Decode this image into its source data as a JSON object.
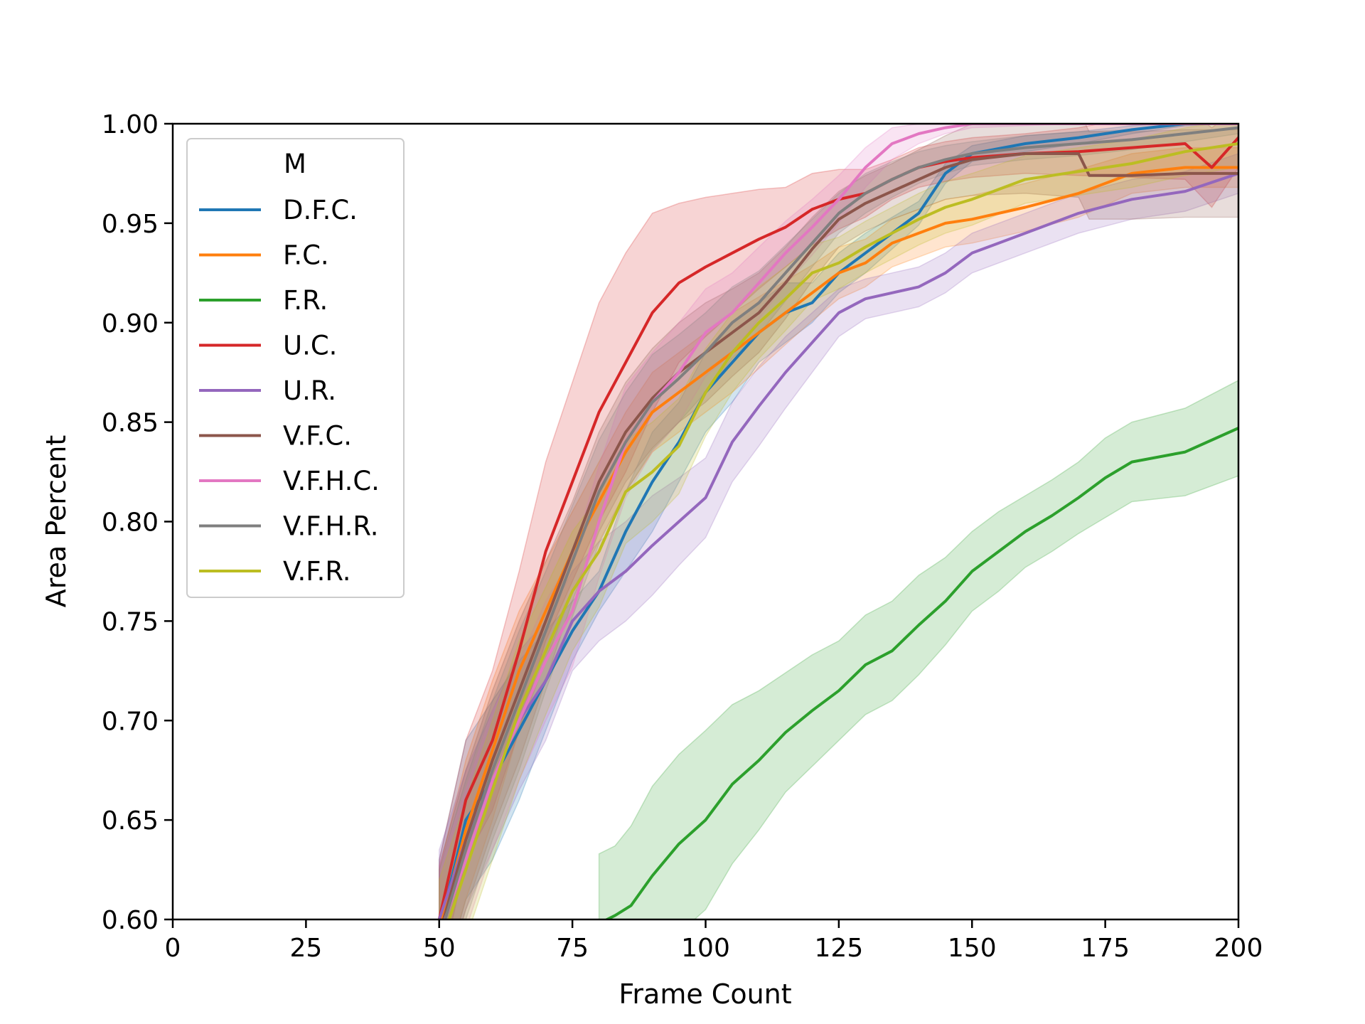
{
  "chart_data": {
    "type": "line",
    "xlabel": "Frame Count",
    "ylabel": "Area Percent",
    "xlim": [
      0,
      200
    ],
    "ylim": [
      0.6,
      1.0
    ],
    "xticks": [
      "0",
      "25",
      "50",
      "75",
      "100",
      "125",
      "150",
      "175",
      "200"
    ],
    "yticks": [
      "0.60",
      "0.65",
      "0.70",
      "0.75",
      "0.80",
      "0.85",
      "0.90",
      "0.95",
      "1.00"
    ],
    "grid": false,
    "legend": {
      "title": "M",
      "position": "top-left"
    },
    "series": [
      {
        "name": "D.F.C.",
        "color": "#1f77b4",
        "x": [
          50,
          55,
          60,
          65,
          70,
          75,
          80,
          85,
          90,
          95,
          100,
          105,
          110,
          115,
          120,
          125,
          130,
          135,
          140,
          145,
          150,
          160,
          170,
          180,
          190,
          200
        ],
        "y": [
          0.595,
          0.65,
          0.67,
          0.695,
          0.72,
          0.745,
          0.765,
          0.795,
          0.82,
          0.84,
          0.865,
          0.88,
          0.895,
          0.905,
          0.91,
          0.925,
          0.935,
          0.945,
          0.955,
          0.975,
          0.985,
          0.99,
          0.993,
          0.997,
          1.0,
          1.0
        ],
        "band": [
          0.035,
          0.04,
          0.04,
          0.035,
          0.025,
          0.015,
          0.01,
          0.02,
          0.025,
          0.02,
          0.02,
          0.02,
          0.015,
          0.015,
          0.01,
          0.01,
          0.01,
          0.008,
          0.006,
          0.005,
          0.004,
          0.004,
          0.003,
          0.002,
          0.001,
          0.0
        ]
      },
      {
        "name": "F.C.",
        "color": "#ff7f0e",
        "x": [
          50,
          55,
          60,
          65,
          70,
          75,
          80,
          85,
          90,
          95,
          100,
          105,
          110,
          115,
          120,
          125,
          130,
          135,
          140,
          145,
          150,
          160,
          170,
          180,
          190,
          200
        ],
        "y": [
          0.595,
          0.645,
          0.685,
          0.725,
          0.755,
          0.785,
          0.81,
          0.835,
          0.855,
          0.865,
          0.875,
          0.885,
          0.895,
          0.905,
          0.915,
          0.925,
          0.93,
          0.94,
          0.945,
          0.95,
          0.952,
          0.958,
          0.965,
          0.975,
          0.978,
          0.978
        ],
        "band": [
          0.03,
          0.035,
          0.035,
          0.03,
          0.025,
          0.02,
          0.02,
          0.02,
          0.02,
          0.02,
          0.02,
          0.02,
          0.018,
          0.016,
          0.014,
          0.013,
          0.012,
          0.012,
          0.012,
          0.012,
          0.012,
          0.012,
          0.012,
          0.01,
          0.01,
          0.01
        ]
      },
      {
        "name": "F.R.",
        "color": "#2ca02c",
        "x": [
          80,
          83,
          86,
          90,
          95,
          100,
          105,
          110,
          115,
          120,
          125,
          130,
          135,
          140,
          145,
          150,
          155,
          160,
          165,
          170,
          175,
          180,
          190,
          200
        ],
        "y": [
          0.598,
          0.602,
          0.607,
          0.622,
          0.638,
          0.65,
          0.668,
          0.68,
          0.694,
          0.705,
          0.715,
          0.728,
          0.735,
          0.748,
          0.76,
          0.775,
          0.785,
          0.795,
          0.803,
          0.812,
          0.822,
          0.83,
          0.835,
          0.847
        ],
        "band": [
          0.035,
          0.035,
          0.04,
          0.045,
          0.045,
          0.045,
          0.04,
          0.035,
          0.03,
          0.028,
          0.025,
          0.025,
          0.025,
          0.025,
          0.022,
          0.02,
          0.02,
          0.018,
          0.018,
          0.018,
          0.02,
          0.02,
          0.022,
          0.024
        ]
      },
      {
        "name": "U.C.",
        "color": "#d62728",
        "x": [
          50,
          55,
          60,
          65,
          70,
          75,
          80,
          85,
          90,
          95,
          100,
          105,
          110,
          115,
          120,
          125,
          130,
          135,
          140,
          145,
          150,
          160,
          170,
          180,
          190,
          195,
          200
        ],
        "y": [
          0.6,
          0.66,
          0.69,
          0.735,
          0.785,
          0.82,
          0.855,
          0.88,
          0.905,
          0.92,
          0.928,
          0.935,
          0.942,
          0.948,
          0.957,
          0.962,
          0.965,
          0.972,
          0.978,
          0.981,
          0.983,
          0.985,
          0.986,
          0.988,
          0.99,
          0.978,
          0.993
        ],
        "band": [
          0.03,
          0.03,
          0.035,
          0.04,
          0.045,
          0.05,
          0.055,
          0.055,
          0.05,
          0.04,
          0.035,
          0.03,
          0.025,
          0.02,
          0.018,
          0.015,
          0.012,
          0.01,
          0.01,
          0.01,
          0.01,
          0.01,
          0.012,
          0.015,
          0.018,
          0.02,
          0.015
        ]
      },
      {
        "name": "U.R.",
        "color": "#9467bd",
        "x": [
          50,
          55,
          60,
          65,
          70,
          75,
          80,
          85,
          90,
          95,
          100,
          105,
          110,
          115,
          120,
          125,
          130,
          135,
          140,
          145,
          150,
          160,
          170,
          180,
          190,
          200
        ],
        "y": [
          0.6,
          0.64,
          0.67,
          0.7,
          0.72,
          0.75,
          0.765,
          0.775,
          0.788,
          0.8,
          0.812,
          0.84,
          0.858,
          0.875,
          0.89,
          0.905,
          0.912,
          0.915,
          0.918,
          0.925,
          0.935,
          0.945,
          0.955,
          0.962,
          0.966,
          0.975
        ],
        "band": [
          0.035,
          0.035,
          0.035,
          0.035,
          0.03,
          0.025,
          0.025,
          0.025,
          0.025,
          0.022,
          0.02,
          0.02,
          0.02,
          0.018,
          0.015,
          0.012,
          0.01,
          0.01,
          0.01,
          0.01,
          0.01,
          0.01,
          0.01,
          0.01,
          0.01,
          0.01
        ]
      },
      {
        "name": "V.F.C.",
        "color": "#8c564b",
        "x": [
          50,
          55,
          60,
          65,
          70,
          75,
          80,
          85,
          90,
          95,
          100,
          105,
          110,
          115,
          120,
          125,
          130,
          135,
          140,
          145,
          150,
          160,
          170,
          172,
          180,
          190,
          200
        ],
        "y": [
          0.592,
          0.64,
          0.68,
          0.715,
          0.75,
          0.785,
          0.82,
          0.845,
          0.862,
          0.875,
          0.885,
          0.895,
          0.905,
          0.92,
          0.937,
          0.952,
          0.96,
          0.966,
          0.972,
          0.978,
          0.982,
          0.985,
          0.985,
          0.974,
          0.974,
          0.975,
          0.975
        ],
        "band": [
          0.035,
          0.035,
          0.035,
          0.035,
          0.03,
          0.025,
          0.025,
          0.025,
          0.025,
          0.025,
          0.025,
          0.022,
          0.02,
          0.018,
          0.016,
          0.014,
          0.014,
          0.014,
          0.015,
          0.016,
          0.018,
          0.02,
          0.022,
          0.022,
          0.022,
          0.022,
          0.022
        ]
      },
      {
        "name": "V.F.H.C.",
        "color": "#e377c2",
        "x": [
          50,
          55,
          60,
          65,
          70,
          75,
          80,
          85,
          90,
          95,
          100,
          105,
          110,
          115,
          120,
          125,
          130,
          135,
          140,
          145,
          150,
          160,
          170,
          180,
          190,
          200
        ],
        "y": [
          0.592,
          0.63,
          0.67,
          0.7,
          0.73,
          0.755,
          0.8,
          0.84,
          0.86,
          0.875,
          0.895,
          0.905,
          0.92,
          0.935,
          0.948,
          0.962,
          0.978,
          0.99,
          0.995,
          0.998,
          1.0,
          1.0,
          1.0,
          1.0,
          1.0,
          1.0
        ],
        "band": [
          0.035,
          0.035,
          0.035,
          0.03,
          0.03,
          0.028,
          0.028,
          0.028,
          0.025,
          0.025,
          0.022,
          0.02,
          0.018,
          0.016,
          0.014,
          0.012,
          0.01,
          0.008,
          0.005,
          0.003,
          0.002,
          0.001,
          0.0,
          0.0,
          0.0,
          0.0
        ]
      },
      {
        "name": "V.F.H.R.",
        "color": "#7f7f7f",
        "x": [
          50,
          55,
          60,
          65,
          70,
          75,
          80,
          85,
          90,
          95,
          100,
          105,
          110,
          115,
          120,
          125,
          130,
          135,
          140,
          145,
          150,
          160,
          170,
          180,
          190,
          200
        ],
        "y": [
          0.59,
          0.635,
          0.675,
          0.71,
          0.745,
          0.78,
          0.815,
          0.84,
          0.86,
          0.872,
          0.885,
          0.9,
          0.91,
          0.925,
          0.94,
          0.955,
          0.965,
          0.972,
          0.978,
          0.982,
          0.985,
          0.988,
          0.99,
          0.992,
          0.995,
          0.998
        ],
        "band": [
          0.035,
          0.035,
          0.035,
          0.035,
          0.03,
          0.028,
          0.026,
          0.025,
          0.024,
          0.022,
          0.02,
          0.018,
          0.016,
          0.014,
          0.012,
          0.01,
          0.01,
          0.009,
          0.008,
          0.007,
          0.006,
          0.006,
          0.006,
          0.005,
          0.004,
          0.003
        ]
      },
      {
        "name": "V.F.R.",
        "color": "#bcbd22",
        "x": [
          50,
          55,
          60,
          65,
          70,
          75,
          80,
          85,
          90,
          95,
          100,
          105,
          110,
          115,
          120,
          125,
          130,
          135,
          140,
          145,
          150,
          160,
          170,
          180,
          190,
          200
        ],
        "y": [
          0.585,
          0.625,
          0.665,
          0.705,
          0.735,
          0.765,
          0.785,
          0.815,
          0.825,
          0.838,
          0.865,
          0.885,
          0.9,
          0.912,
          0.925,
          0.93,
          0.938,
          0.945,
          0.952,
          0.958,
          0.962,
          0.972,
          0.976,
          0.98,
          0.986,
          0.99
        ],
        "band": [
          0.035,
          0.035,
          0.035,
          0.035,
          0.032,
          0.03,
          0.028,
          0.026,
          0.025,
          0.024,
          0.022,
          0.02,
          0.018,
          0.016,
          0.014,
          0.013,
          0.013,
          0.013,
          0.013,
          0.013,
          0.013,
          0.012,
          0.012,
          0.012,
          0.012,
          0.012
        ]
      }
    ]
  }
}
